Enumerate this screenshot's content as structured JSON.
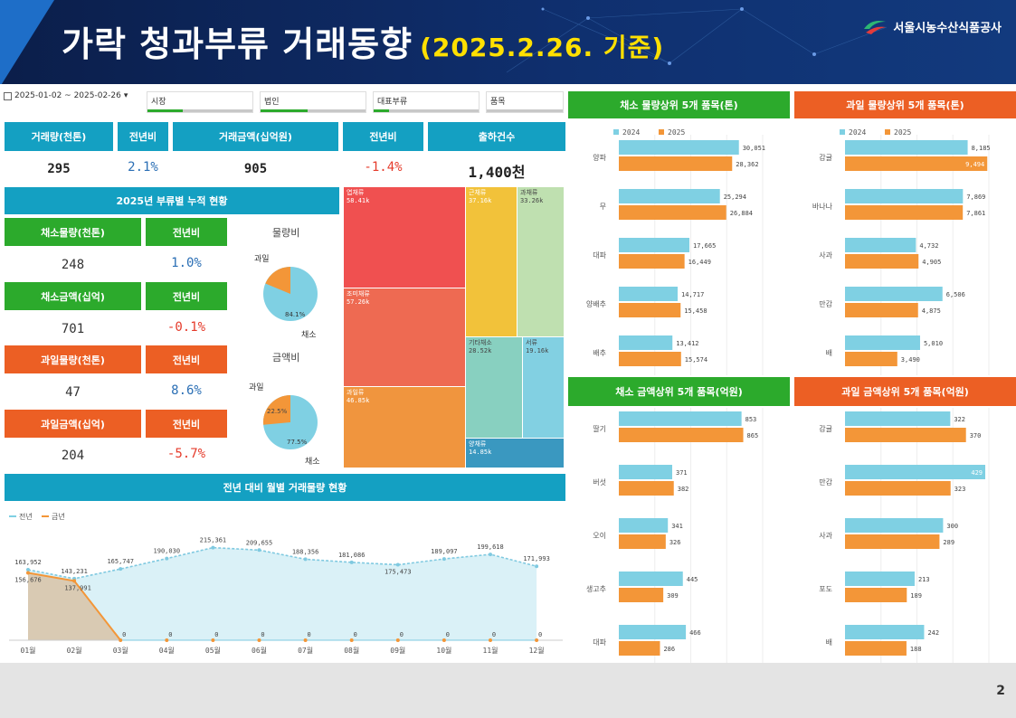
{
  "header": {
    "title": "가락 청과부류 거래동향",
    "subtitle": "(2025.2.26. 기준)",
    "org": "서울시농수산식품공사",
    "page_number": "2"
  },
  "filters": {
    "date_range": "2025-01-02 ~ 2025-02-26",
    "market": "시장",
    "corporation": "법인",
    "category": "대표부류",
    "item": "품목"
  },
  "kpi": {
    "volume_label": "거래량(천톤)",
    "volume_yoy_label": "전년비",
    "amount_label": "거래금액(십억원)",
    "amount_yoy_label": "전년비",
    "shipments_label": "출하건수",
    "volume": "295",
    "volume_yoy": "2.1%",
    "amount": "905",
    "amount_yoy": "-1.4%",
    "shipments": "1,400천"
  },
  "cumulative": {
    "title": "2025년 부류별 누적 현황",
    "rows": [
      {
        "label": "채소물량(천톤)",
        "yoy_label": "전년비",
        "value": "248",
        "yoy": "1.0%"
      },
      {
        "label": "채소금액(십억)",
        "yoy_label": "전년비",
        "value": "701",
        "yoy": "-0.1%"
      },
      {
        "label": "과일물량(천톤)",
        "yoy_label": "전년비",
        "value": "47",
        "yoy": "8.6%"
      },
      {
        "label": "과일금액(십억)",
        "yoy_label": "전년비",
        "value": "204",
        "yoy": "-5.7%"
      }
    ],
    "pie_volume": {
      "title": "물량비",
      "fruit_label": "과일",
      "veg_label": "채소",
      "veg_pct_label": "84.1%"
    },
    "pie_amount": {
      "title": "금액비",
      "fruit_label": "과일",
      "veg_label": "채소",
      "veg_pct_label": "77.5%",
      "fruit_pct_label": "22.5%"
    }
  },
  "treemap": {
    "cells": [
      {
        "name": "엽채류",
        "value": "58.41k"
      },
      {
        "name": "조미채류",
        "value": "57.26k"
      },
      {
        "name": "과일류",
        "value": "46.85k"
      },
      {
        "name": "근채류",
        "value": "37.16k"
      },
      {
        "name": "과채류",
        "value": "33.26k"
      },
      {
        "name": "기타채소",
        "value": "28.52k"
      },
      {
        "name": "서류",
        "value": "19.16k"
      },
      {
        "name": "양채류",
        "value": "14.85k"
      }
    ]
  },
  "colors": {
    "blue_header": "#14a0c2",
    "green_header": "#2caa2c",
    "orange_header": "#ec5f24",
    "bar_2024": "#7fd0e3",
    "bar_2025": "#f39638",
    "neg_text": "#e53b2b",
    "pos_text": "#2b6fb5"
  },
  "chart_data": [
    {
      "type": "line",
      "title": "전년 대비 월별 거래물량 현황",
      "categories": [
        "01월",
        "02월",
        "03월",
        "04월",
        "05월",
        "06월",
        "07월",
        "08월",
        "09월",
        "10월",
        "11월",
        "12월"
      ],
      "series": [
        {
          "name": "전년",
          "values": [
            163952,
            143231,
            165747,
            190030,
            215361,
            209655,
            188356,
            181086,
            175473,
            189097,
            199618,
            171993
          ]
        },
        {
          "name": "금년",
          "values": [
            156676,
            137991,
            0,
            0,
            0,
            0,
            0,
            0,
            0,
            0,
            0,
            0
          ]
        }
      ],
      "ylim": [
        0,
        240000
      ]
    },
    {
      "type": "bar",
      "title": "채소 물량상위 5개 품목(톤)",
      "categories": [
        "양파",
        "무",
        "대파",
        "양배추",
        "배추"
      ],
      "series": [
        {
          "name": "2024",
          "values": [
            30051,
            25294,
            17665,
            14717,
            13412
          ]
        },
        {
          "name": "2025",
          "values": [
            28362,
            26884,
            16449,
            15458,
            15574
          ]
        }
      ],
      "xlim": [
        0,
        36000
      ]
    },
    {
      "type": "bar",
      "title": "과일 물량상위 5개 품목(톤)",
      "categories": [
        "감귤",
        "바나나",
        "사과",
        "만감",
        "배"
      ],
      "series": [
        {
          "name": "2024",
          "values": [
            8185,
            7869,
            4732,
            6506,
            5010
          ]
        },
        {
          "name": "2025",
          "values": [
            9494,
            7861,
            4905,
            4875,
            3490
          ]
        }
      ],
      "xlim": [
        0,
        9600
      ]
    },
    {
      "type": "bar",
      "title": "채소 금액상위 5개 품목(억원)",
      "categories": [
        "딸기",
        "버섯",
        "오이",
        "생고추",
        "대파"
      ],
      "series": [
        {
          "name": "2024",
          "values": [
            853,
            371,
            341,
            445,
            466
          ]
        },
        {
          "name": "2025",
          "values": [
            865,
            382,
            326,
            309,
            286
          ]
        }
      ],
      "xlim": [
        0,
        1000
      ]
    },
    {
      "type": "bar",
      "title": "과일 금액상위 5개 품목(억원)",
      "categories": [
        "감귤",
        "만감",
        "사과",
        "포도",
        "배"
      ],
      "series": [
        {
          "name": "2024",
          "values": [
            322,
            429,
            300,
            213,
            242
          ]
        },
        {
          "name": "2025",
          "values": [
            370,
            323,
            289,
            189,
            188
          ]
        }
      ],
      "xlim": [
        0,
        440
      ]
    }
  ]
}
